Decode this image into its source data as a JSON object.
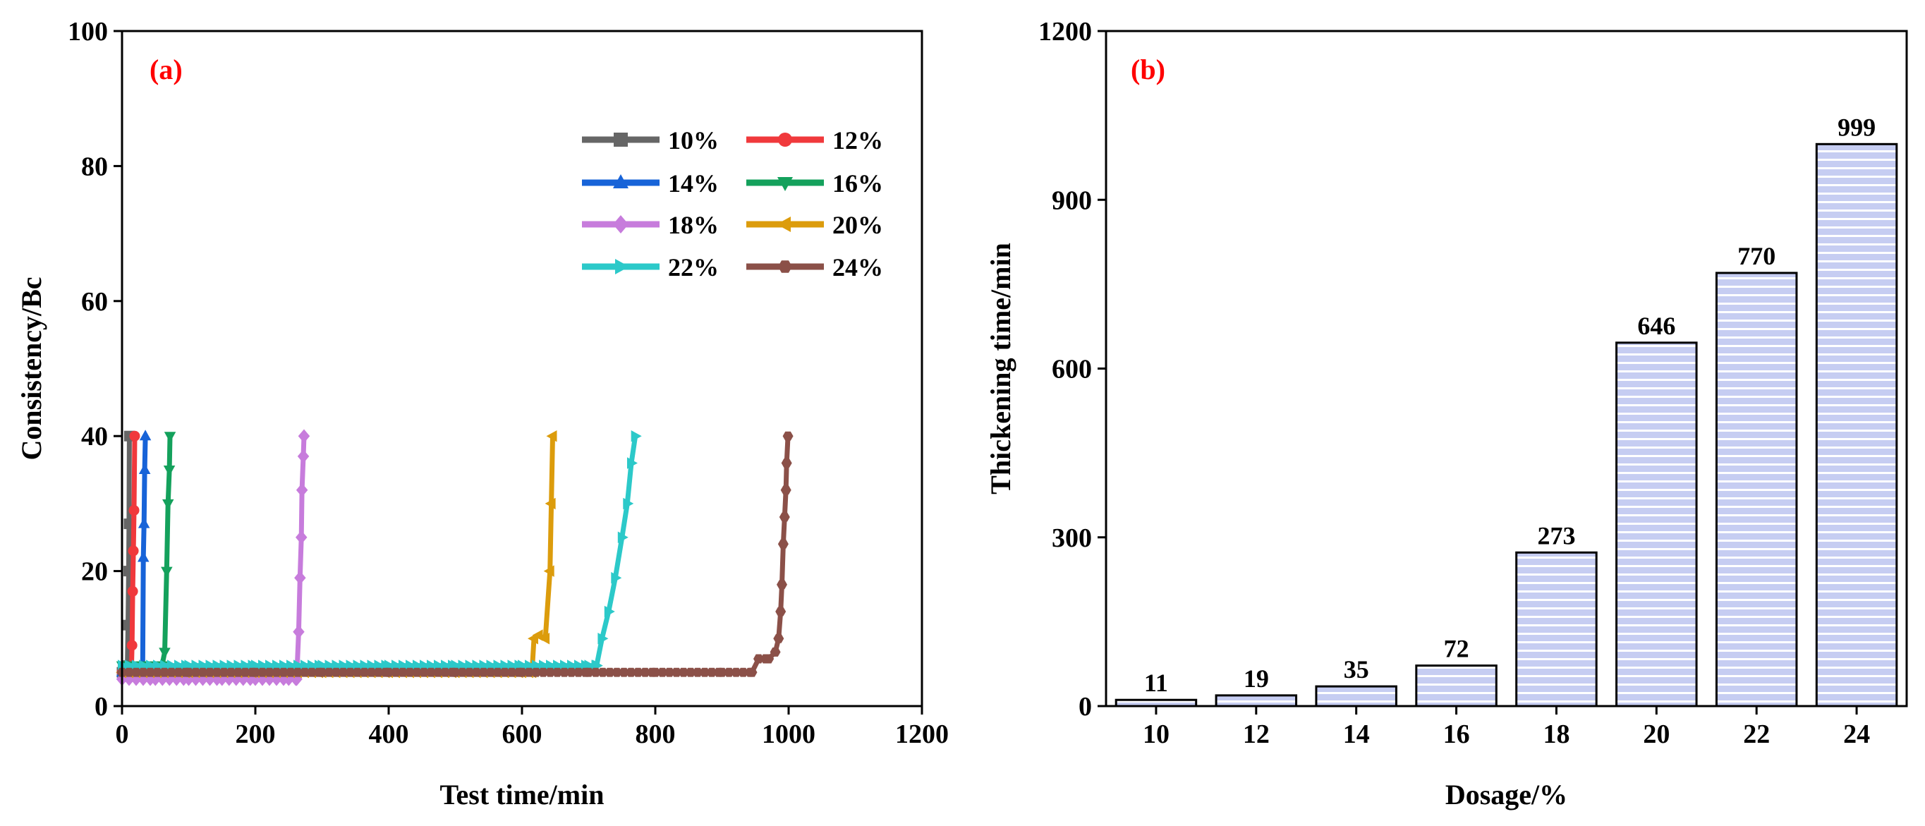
{
  "chart_data": [
    {
      "panel": "(a)",
      "type": "line",
      "xlabel": "Test time/min",
      "ylabel": "Consistency/Bc",
      "xlim": [
        0,
        1200
      ],
      "ylim": [
        0,
        100
      ],
      "xticks": [
        "0",
        "200",
        "400",
        "600",
        "800",
        "1000",
        "1200"
      ],
      "yticks": [
        "0",
        "20",
        "40",
        "60",
        "80",
        "100"
      ],
      "grid": false,
      "legend_position": "upper-right",
      "series": [
        {
          "name": "10%",
          "color": "#666666",
          "marker": "square",
          "points": [
            [
              0,
              5
            ],
            [
              2,
              5
            ],
            [
              4,
              5
            ],
            [
              6,
              5
            ],
            [
              8,
              6
            ],
            [
              9,
              12
            ],
            [
              10,
              20
            ],
            [
              10.5,
              27
            ],
            [
              11,
              40
            ]
          ]
        },
        {
          "name": "12%",
          "color": "#f0393c",
          "marker": "circle",
          "points": [
            [
              0,
              5
            ],
            [
              4,
              5
            ],
            [
              8,
              5
            ],
            [
              12,
              5
            ],
            [
              14,
              5
            ],
            [
              15,
              9
            ],
            [
              16,
              17
            ],
            [
              17,
              23
            ],
            [
              18,
              29
            ],
            [
              19,
              40
            ]
          ]
        },
        {
          "name": "14%",
          "color": "#1763d8",
          "marker": "triangle-up",
          "points": [
            [
              0,
              5
            ],
            [
              10,
              5
            ],
            [
              20,
              5
            ],
            [
              28,
              5
            ],
            [
              31,
              6
            ],
            [
              32,
              22
            ],
            [
              33,
              27
            ],
            [
              34,
              35
            ],
            [
              35,
              40
            ]
          ]
        },
        {
          "name": "16%",
          "color": "#14a15c",
          "marker": "triangle-down",
          "points": [
            [
              0,
              6
            ],
            [
              20,
              6
            ],
            [
              40,
              6
            ],
            [
              60,
              6
            ],
            [
              64,
              8
            ],
            [
              67,
              20
            ],
            [
              69,
              30
            ],
            [
              71,
              35
            ],
            [
              72,
              40
            ]
          ]
        },
        {
          "name": "18%",
          "color": "#c77cdc",
          "marker": "diamond",
          "points": [
            [
              0,
              4
            ],
            [
              50,
              4
            ],
            [
              100,
              4
            ],
            [
              150,
              4
            ],
            [
              200,
              4
            ],
            [
              250,
              4
            ],
            [
              262,
              4
            ],
            [
              265,
              11
            ],
            [
              267,
              19
            ],
            [
              269,
              25
            ],
            [
              270,
              32
            ],
            [
              272,
              37
            ],
            [
              273,
              40
            ]
          ]
        },
        {
          "name": "20%",
          "color": "#dc9c0c",
          "marker": "triangle-left",
          "points": [
            [
              0,
              5
            ],
            [
              100,
              5
            ],
            [
              200,
              5
            ],
            [
              300,
              5
            ],
            [
              400,
              5
            ],
            [
              500,
              5
            ],
            [
              600,
              5
            ],
            [
              615,
              5
            ],
            [
              618,
              10
            ],
            [
              625,
              10.5
            ],
            [
              635,
              10
            ],
            [
              642,
              20
            ],
            [
              644,
              30
            ],
            [
              646,
              40
            ]
          ]
        },
        {
          "name": "22%",
          "color": "#2cc9c9",
          "marker": "triangle-right",
          "points": [
            [
              0,
              6
            ],
            [
              100,
              6
            ],
            [
              200,
              6
            ],
            [
              300,
              6
            ],
            [
              400,
              6
            ],
            [
              500,
              6
            ],
            [
              600,
              6
            ],
            [
              700,
              6
            ],
            [
              712,
              6
            ],
            [
              720,
              10
            ],
            [
              730,
              14
            ],
            [
              740,
              19
            ],
            [
              750,
              25
            ],
            [
              758,
              30
            ],
            [
              764,
              36
            ],
            [
              770,
              40
            ]
          ]
        },
        {
          "name": "24%",
          "color": "#8b5048",
          "marker": "hexagon",
          "points": [
            [
              0,
              5
            ],
            [
              100,
              5
            ],
            [
              200,
              5
            ],
            [
              300,
              5
            ],
            [
              400,
              5
            ],
            [
              500,
              5
            ],
            [
              600,
              5
            ],
            [
              700,
              5
            ],
            [
              800,
              5
            ],
            [
              900,
              5
            ],
            [
              945,
              5
            ],
            [
              955,
              7
            ],
            [
              970,
              7
            ],
            [
              980,
              8
            ],
            [
              985,
              10
            ],
            [
              988,
              14
            ],
            [
              990,
              18
            ],
            [
              992,
              24
            ],
            [
              994,
              28
            ],
            [
              996,
              32
            ],
            [
              997,
              36
            ],
            [
              999,
              40
            ]
          ]
        }
      ]
    },
    {
      "panel": "(b)",
      "type": "bar",
      "xlabel": "Dosage/%",
      "ylabel": "Thickening time/min",
      "ylim": [
        0,
        1200
      ],
      "yticks": [
        "0",
        "300",
        "600",
        "900",
        "1200"
      ],
      "categories": [
        "10",
        "12",
        "14",
        "16",
        "18",
        "20",
        "22",
        "24"
      ],
      "values": [
        11,
        19,
        35,
        72,
        273,
        646,
        770,
        999
      ],
      "bar_fill": "#c6cdf2",
      "bar_stripe": "#ffffff",
      "bar_edge": "#000000"
    }
  ],
  "panel_tag_color": "#ff0000"
}
